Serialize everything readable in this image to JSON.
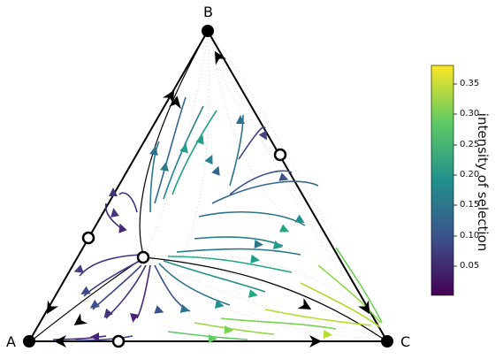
{
  "vertices": {
    "a": "A",
    "b": "B",
    "c": "C"
  },
  "colorbar": {
    "title": "intensity of selection",
    "ticks": [
      "0.35",
      "0.30",
      "0.25",
      "0.20",
      "0.15",
      "0.10",
      "0.05"
    ],
    "colors": [
      "#440154",
      "#3b528b",
      "#21908d",
      "#5dc963",
      "#fde725"
    ]
  },
  "fixed_points": {
    "stable": [
      "A",
      "B",
      "C"
    ],
    "unstable_count": 5
  }
}
